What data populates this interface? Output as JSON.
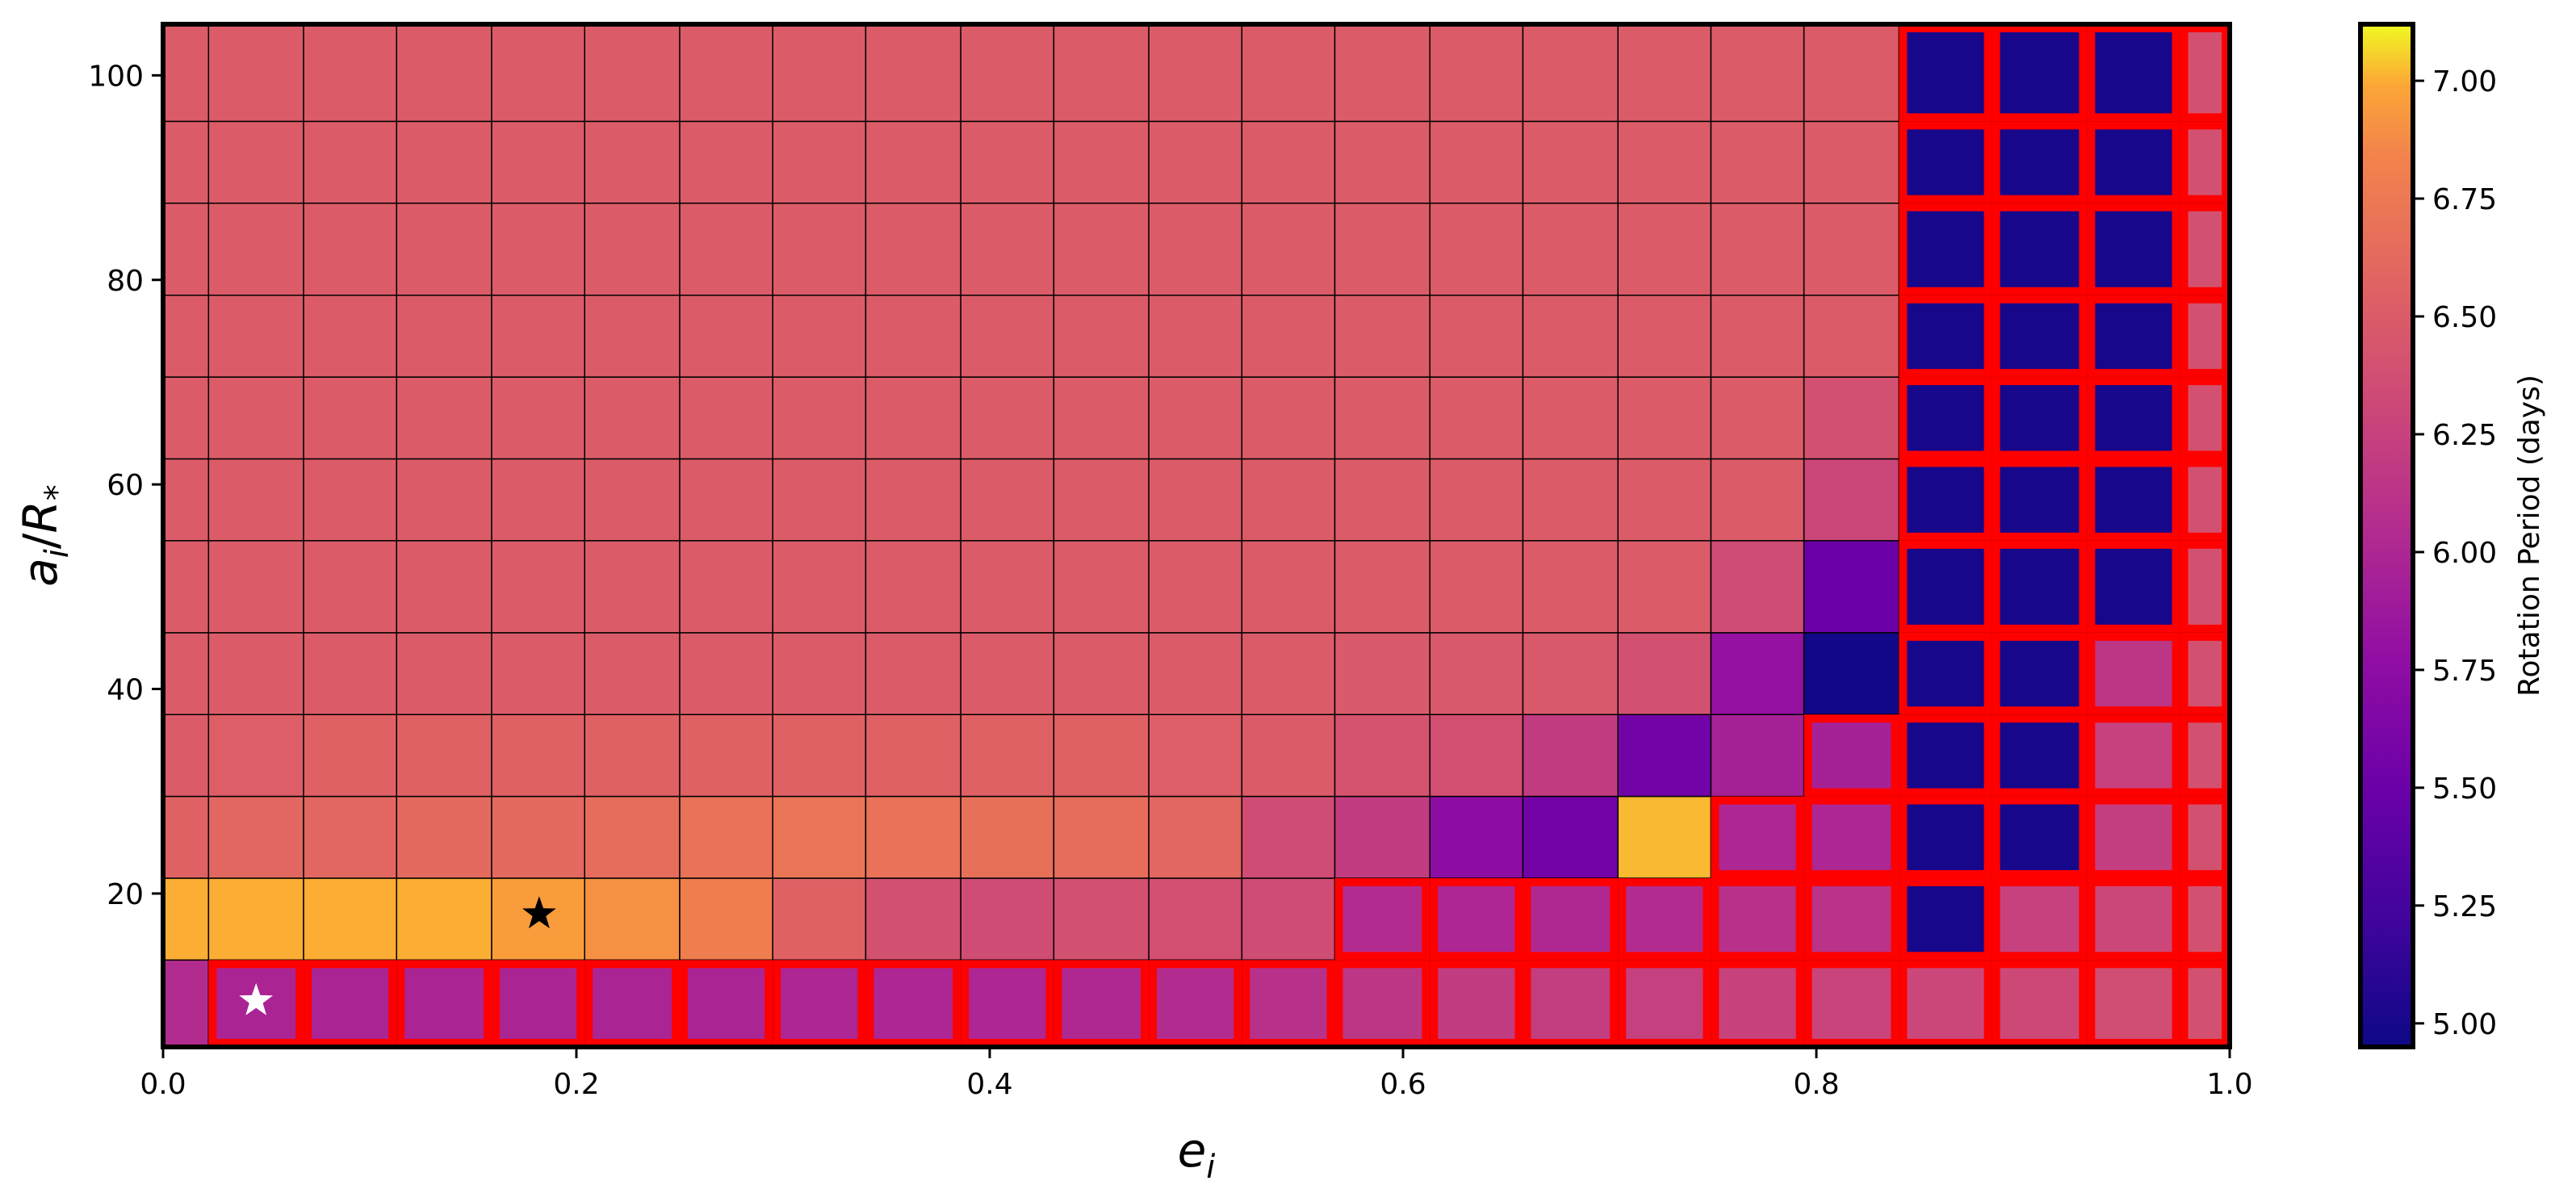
{
  "chart_data": {
    "type": "heatmap",
    "xlabel": "e_i",
    "ylabel": "a_i/R_*",
    "xlim": [
      0.0,
      1.0
    ],
    "ylim": [
      5,
      105
    ],
    "x_ticks": [
      0.0,
      0.2,
      0.4,
      0.6,
      0.8,
      1.0
    ],
    "x_tick_labels": [
      "0.0",
      "0.2",
      "0.4",
      "0.6",
      "0.8",
      "1.0"
    ],
    "y_ticks": [
      20,
      40,
      60,
      80,
      100
    ],
    "y_tick_labels": [
      "20",
      "40",
      "60",
      "80",
      "100"
    ],
    "colorbar": {
      "label": "Rotation Period (days)",
      "colormap": "plasma",
      "range": [
        4.95,
        7.12
      ],
      "ticks": [
        5.0,
        5.25,
        5.5,
        5.75,
        6.0,
        6.25,
        6.5,
        6.75,
        7.0
      ],
      "tick_labels": [
        "5.00",
        "5.25",
        "5.50",
        "5.75",
        "6.00",
        "6.25",
        "6.50",
        "6.75",
        "7.00"
      ]
    },
    "x_edges": [
      0.0,
      0.022,
      0.068,
      0.113,
      0.159,
      0.204,
      0.25,
      0.295,
      0.34,
      0.386,
      0.431,
      0.477,
      0.522,
      0.567,
      0.613,
      0.658,
      0.704,
      0.749,
      0.794,
      0.84,
      0.885,
      0.931,
      0.976,
      1.0
    ],
    "y_edges": [
      5,
      13.5,
      21.5,
      29.5,
      37.5,
      45.5,
      54.5,
      62.5,
      70.5,
      78.5,
      87.5,
      95.5,
      105
    ],
    "values": [
      [
        6.05,
        5.98,
        5.98,
        5.98,
        5.98,
        5.98,
        5.98,
        6.0,
        6.0,
        6.0,
        6.02,
        6.05,
        6.1,
        6.15,
        6.2,
        6.22,
        6.24,
        6.26,
        6.28,
        6.3,
        6.32,
        6.36,
        6.4
      ],
      [
        7.0,
        7.0,
        7.0,
        7.0,
        6.95,
        6.9,
        6.8,
        6.55,
        6.4,
        6.35,
        6.4,
        6.38,
        6.35,
        6.05,
        6.0,
        6.02,
        6.05,
        6.1,
        6.12,
        5.0,
        6.25,
        6.3,
        6.4
      ],
      [
        6.55,
        6.6,
        6.6,
        6.62,
        6.62,
        6.65,
        6.7,
        6.72,
        6.7,
        6.68,
        6.65,
        6.6,
        6.35,
        6.2,
        5.75,
        5.55,
        7.02,
        6.0,
        6.0,
        5.0,
        5.0,
        6.22,
        6.4
      ],
      [
        6.5,
        6.52,
        6.55,
        6.55,
        6.55,
        6.55,
        6.55,
        6.55,
        6.55,
        6.55,
        6.55,
        6.52,
        6.5,
        6.42,
        6.38,
        6.2,
        5.55,
        5.95,
        5.95,
        5.0,
        5.0,
        6.25,
        6.4
      ],
      [
        6.5,
        6.5,
        6.5,
        6.5,
        6.5,
        6.5,
        6.5,
        6.5,
        6.5,
        6.5,
        6.5,
        6.5,
        6.5,
        6.48,
        6.48,
        6.48,
        6.4,
        5.8,
        4.97,
        5.0,
        5.0,
        6.15,
        6.4
      ],
      [
        6.5,
        6.5,
        6.5,
        6.5,
        6.5,
        6.5,
        6.5,
        6.5,
        6.5,
        6.5,
        6.5,
        6.5,
        6.5,
        6.5,
        6.5,
        6.5,
        6.5,
        6.35,
        5.5,
        5.0,
        5.0,
        5.0,
        6.4
      ],
      [
        6.5,
        6.5,
        6.5,
        6.5,
        6.5,
        6.5,
        6.5,
        6.5,
        6.5,
        6.5,
        6.5,
        6.5,
        6.5,
        6.5,
        6.5,
        6.5,
        6.5,
        6.5,
        6.3,
        5.0,
        5.0,
        5.0,
        6.4
      ],
      [
        6.5,
        6.5,
        6.5,
        6.5,
        6.5,
        6.5,
        6.5,
        6.5,
        6.5,
        6.5,
        6.5,
        6.5,
        6.5,
        6.5,
        6.5,
        6.5,
        6.5,
        6.5,
        6.4,
        5.0,
        5.0,
        5.0,
        6.4
      ],
      [
        6.5,
        6.5,
        6.5,
        6.5,
        6.5,
        6.5,
        6.5,
        6.5,
        6.5,
        6.5,
        6.5,
        6.5,
        6.5,
        6.5,
        6.5,
        6.5,
        6.5,
        6.5,
        6.5,
        5.0,
        5.0,
        5.0,
        6.4
      ],
      [
        6.5,
        6.5,
        6.5,
        6.5,
        6.5,
        6.5,
        6.5,
        6.5,
        6.5,
        6.5,
        6.5,
        6.5,
        6.5,
        6.5,
        6.5,
        6.5,
        6.5,
        6.5,
        6.5,
        5.0,
        5.0,
        5.0,
        6.4
      ],
      [
        6.5,
        6.5,
        6.5,
        6.5,
        6.5,
        6.5,
        6.5,
        6.5,
        6.5,
        6.5,
        6.5,
        6.5,
        6.5,
        6.5,
        6.5,
        6.5,
        6.5,
        6.5,
        6.5,
        5.0,
        5.0,
        5.0,
        6.4
      ],
      [
        6.5,
        6.5,
        6.5,
        6.5,
        6.5,
        6.5,
        6.5,
        6.5,
        6.5,
        6.5,
        6.5,
        6.5,
        6.5,
        6.5,
        6.5,
        6.5,
        6.5,
        6.5,
        6.5,
        5.0,
        5.0,
        5.0,
        6.4
      ]
    ],
    "highlighted_cells": [
      [
        0,
        1
      ],
      [
        0,
        2
      ],
      [
        0,
        3
      ],
      [
        0,
        4
      ],
      [
        0,
        5
      ],
      [
        0,
        6
      ],
      [
        0,
        7
      ],
      [
        0,
        8
      ],
      [
        0,
        9
      ],
      [
        0,
        10
      ],
      [
        0,
        11
      ],
      [
        0,
        12
      ],
      [
        0,
        13
      ],
      [
        0,
        14
      ],
      [
        0,
        15
      ],
      [
        0,
        16
      ],
      [
        0,
        17
      ],
      [
        0,
        18
      ],
      [
        0,
        19
      ],
      [
        0,
        20
      ],
      [
        0,
        21
      ],
      [
        0,
        22
      ],
      [
        1,
        13
      ],
      [
        1,
        14
      ],
      [
        1,
        15
      ],
      [
        1,
        16
      ],
      [
        1,
        17
      ],
      [
        1,
        18
      ],
      [
        1,
        19
      ],
      [
        1,
        20
      ],
      [
        1,
        21
      ],
      [
        1,
        22
      ],
      [
        2,
        17
      ],
      [
        2,
        18
      ],
      [
        2,
        19
      ],
      [
        2,
        20
      ],
      [
        2,
        21
      ],
      [
        2,
        22
      ],
      [
        3,
        18
      ],
      [
        3,
        19
      ],
      [
        3,
        20
      ],
      [
        3,
        21
      ],
      [
        3,
        22
      ],
      [
        4,
        19
      ],
      [
        4,
        20
      ],
      [
        4,
        21
      ],
      [
        4,
        22
      ],
      [
        5,
        19
      ],
      [
        5,
        20
      ],
      [
        5,
        21
      ],
      [
        5,
        22
      ],
      [
        6,
        19
      ],
      [
        6,
        20
      ],
      [
        6,
        21
      ],
      [
        6,
        22
      ],
      [
        7,
        19
      ],
      [
        7,
        20
      ],
      [
        7,
        21
      ],
      [
        7,
        22
      ],
      [
        8,
        19
      ],
      [
        8,
        20
      ],
      [
        8,
        21
      ],
      [
        8,
        22
      ],
      [
        9,
        19
      ],
      [
        9,
        20
      ],
      [
        9,
        21
      ],
      [
        9,
        22
      ],
      [
        10,
        19
      ],
      [
        10,
        20
      ],
      [
        10,
        21
      ],
      [
        10,
        22
      ],
      [
        11,
        19
      ],
      [
        11,
        20
      ],
      [
        11,
        21
      ],
      [
        11,
        22
      ]
    ],
    "highlight_color": "#ff0000",
    "grid_line_color": "#000000",
    "markers": [
      {
        "x": 0.182,
        "y": 18.0,
        "symbol": "star",
        "color": "#000000"
      },
      {
        "x": 0.045,
        "y": 9.5,
        "symbol": "star",
        "color": "#ffffff"
      }
    ]
  }
}
